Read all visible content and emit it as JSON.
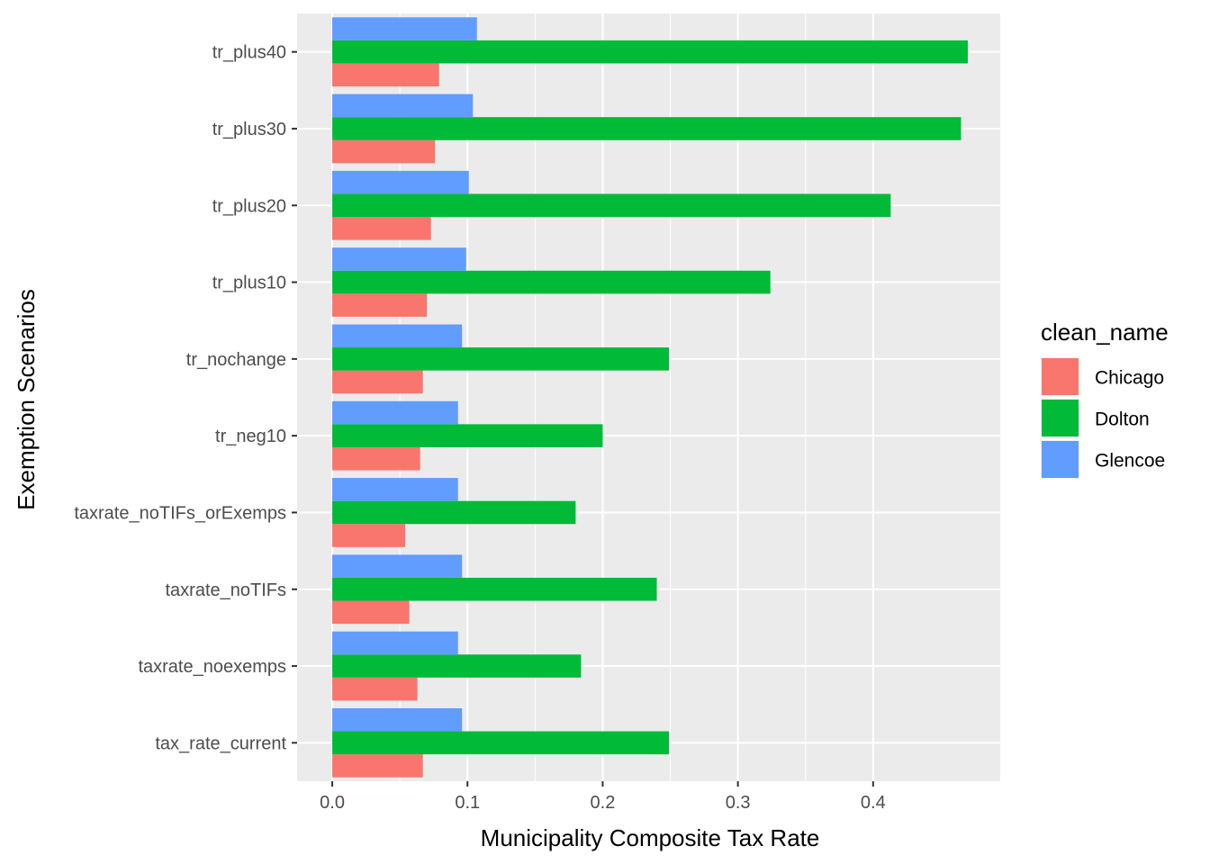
{
  "chart_data": {
    "type": "bar",
    "orientation": "horizontal",
    "categories": [
      "tax_rate_current",
      "taxrate_noexemps",
      "taxrate_noTIFs",
      "taxrate_noTIFs_orExemps",
      "tr_neg10",
      "tr_nochange",
      "tr_plus10",
      "tr_plus20",
      "tr_plus30",
      "tr_plus40"
    ],
    "series": [
      {
        "name": "Chicago",
        "color": "#F8766D",
        "values": [
          0.067,
          0.063,
          0.057,
          0.054,
          0.065,
          0.067,
          0.07,
          0.073,
          0.076,
          0.079
        ]
      },
      {
        "name": "Dolton",
        "color": "#00BA38",
        "values": [
          0.249,
          0.184,
          0.24,
          0.18,
          0.2,
          0.249,
          0.324,
          0.413,
          0.465,
          0.47
        ]
      },
      {
        "name": "Glencoe",
        "color": "#619CFF",
        "values": [
          0.096,
          0.093,
          0.096,
          0.093,
          0.093,
          0.096,
          0.099,
          0.101,
          0.104,
          0.107
        ]
      }
    ],
    "xlabel": "Municipality Composite Tax Rate",
    "ylabel": "Exemption Scenarios",
    "xlim": [
      -0.026,
      0.494
    ],
    "x_ticks": [
      0.0,
      0.1,
      0.2,
      0.3,
      0.4
    ],
    "x_tick_labels": [
      "0.0",
      "0.1",
      "0.2",
      "0.3",
      "0.4"
    ],
    "grid": true,
    "panel_background": "#EBEBEB",
    "grid_color": "#FFFFFF",
    "legend": {
      "title": "clean_name",
      "position": "right",
      "entries": [
        "Chicago",
        "Dolton",
        "Glencoe"
      ]
    }
  }
}
